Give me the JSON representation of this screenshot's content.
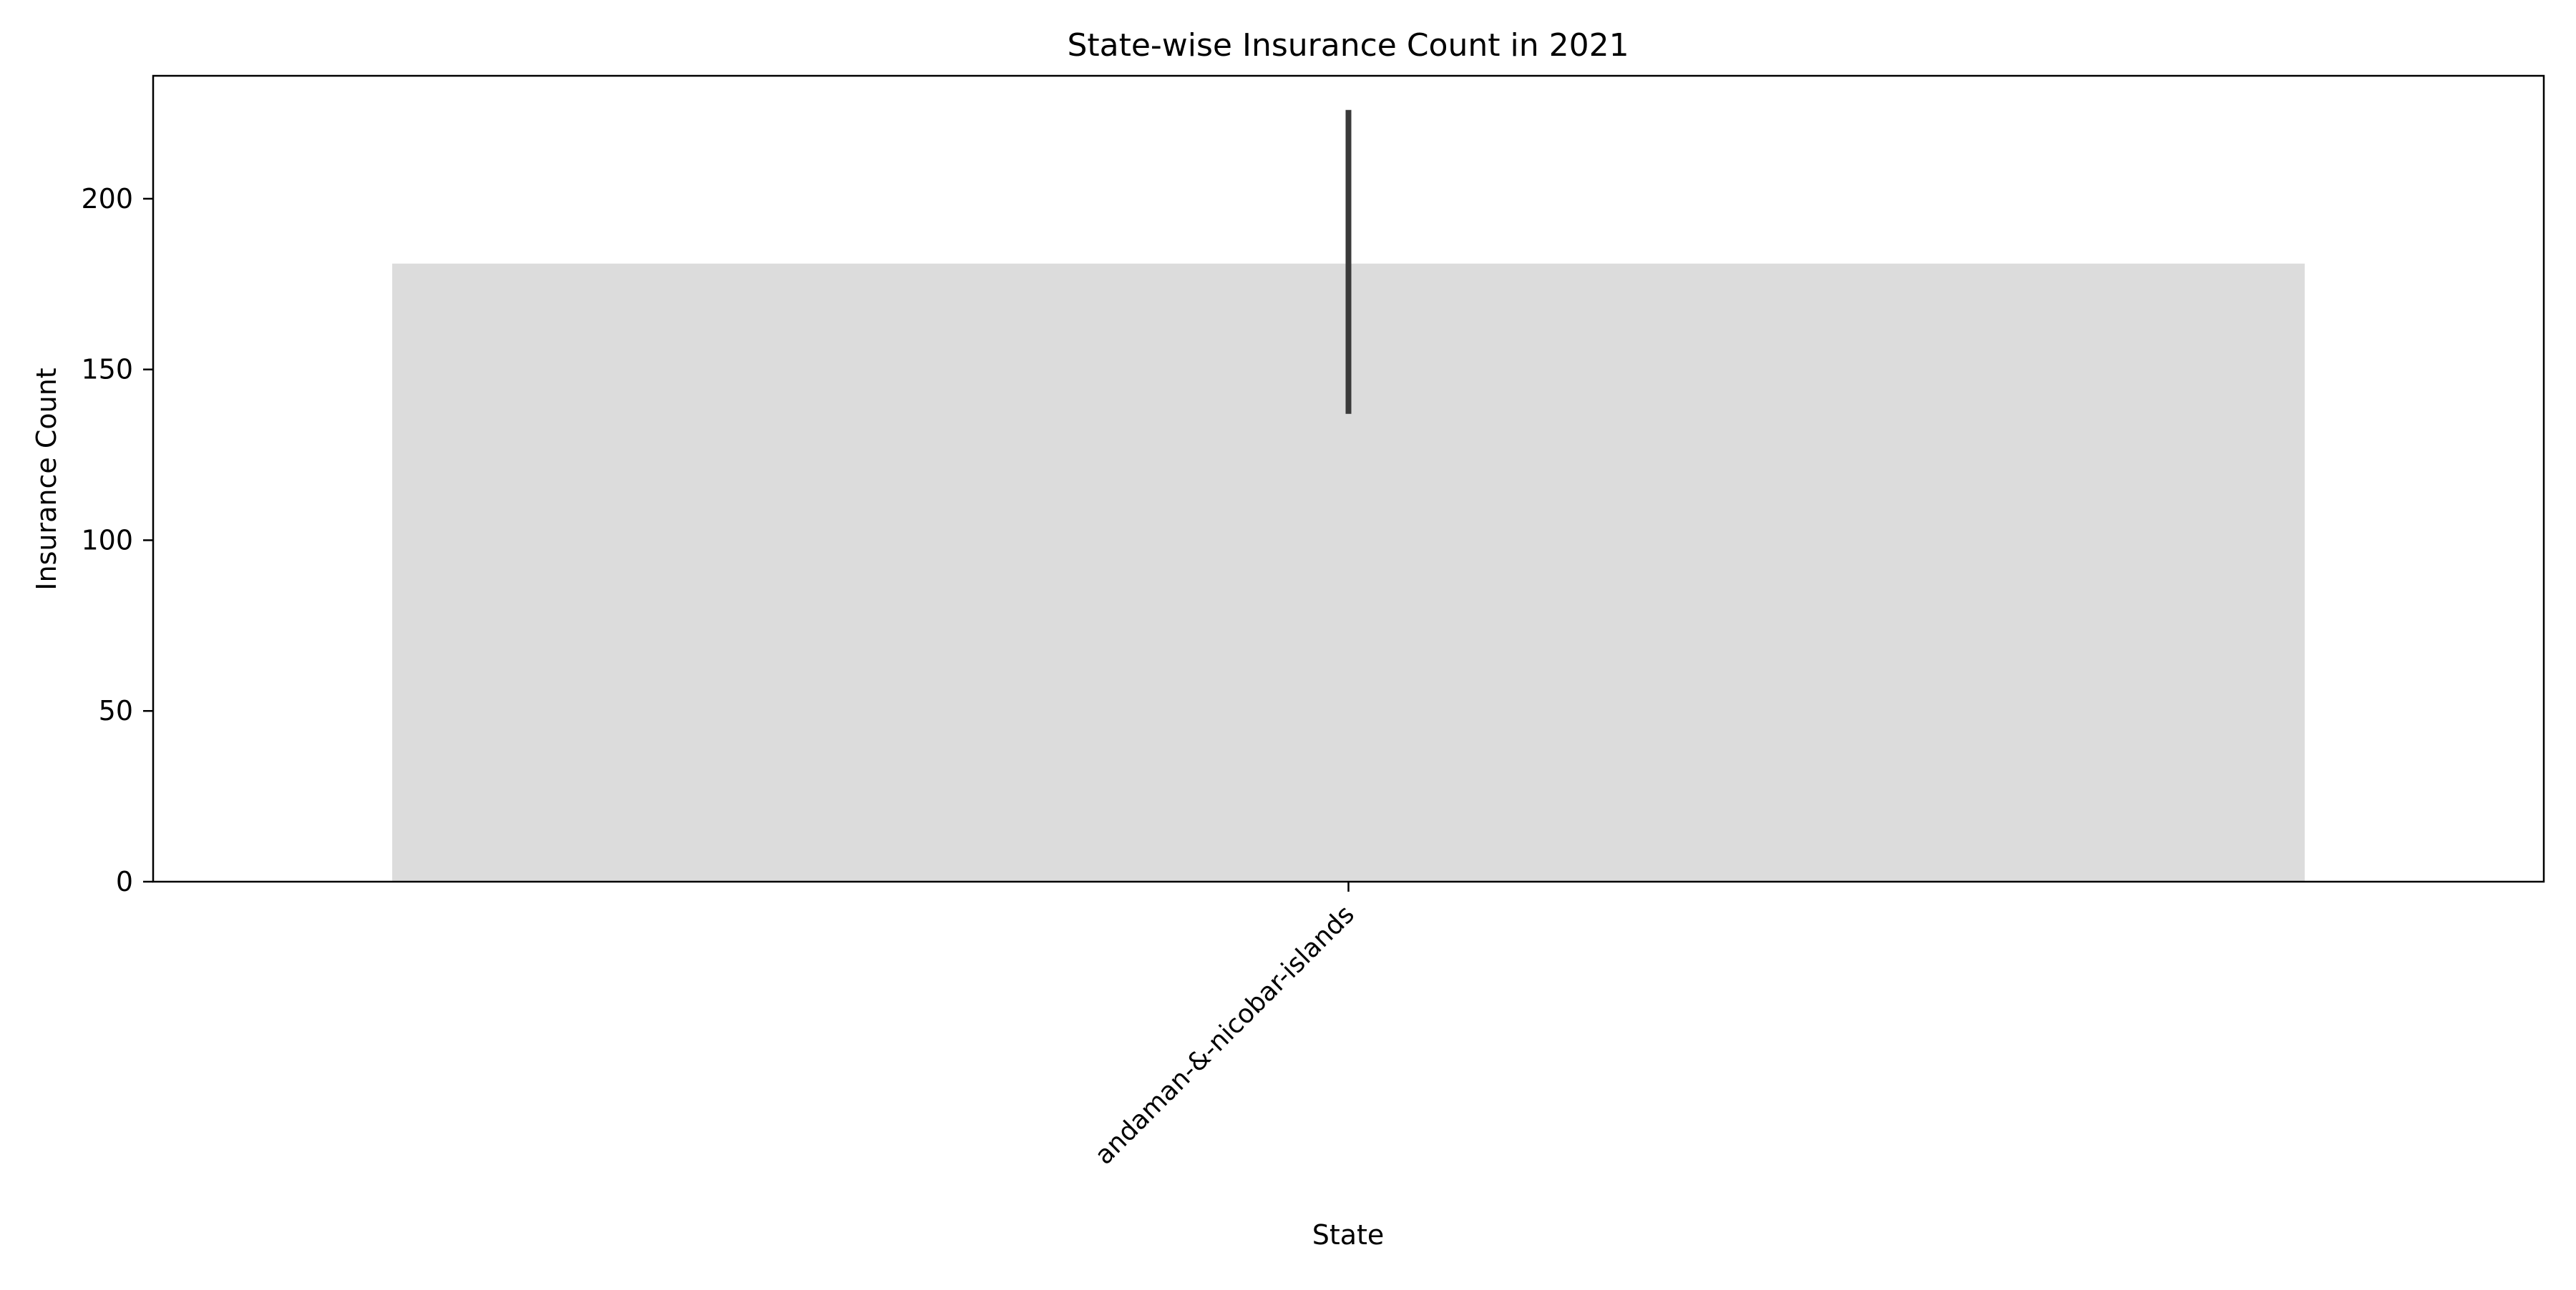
{
  "chart_data": {
    "type": "bar",
    "title": "State-wise Insurance Count in 2021",
    "xlabel": "State",
    "ylabel": "Insurance Count",
    "categories": [
      "andaman-&-nicobar-islands"
    ],
    "values": [
      181
    ],
    "error_bars": [
      {
        "low": 137,
        "high": 226
      }
    ],
    "ylim": [
      0,
      236
    ],
    "yticks": [
      0,
      50,
      100,
      150,
      200
    ],
    "grid": false,
    "legend": "none",
    "colors": {
      "bar": "#dcdcdc",
      "error_bar": "#3a3a3a",
      "axes": "#000000",
      "background": "#ffffff"
    }
  }
}
